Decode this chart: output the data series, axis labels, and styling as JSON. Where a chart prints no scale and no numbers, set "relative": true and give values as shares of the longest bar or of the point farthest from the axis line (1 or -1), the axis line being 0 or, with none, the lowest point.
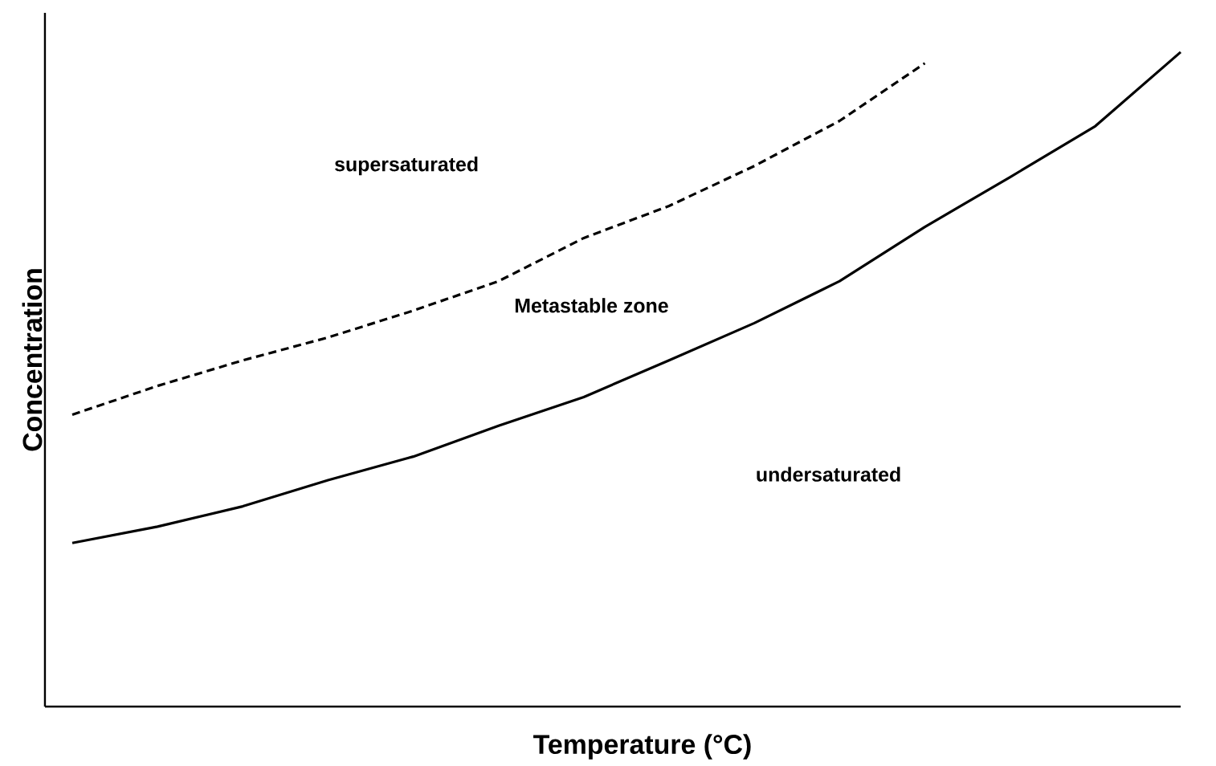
{
  "chart_data": {
    "type": "line",
    "relative": true,
    "xlabel": "Temperature (°C)",
    "ylabel": "Concentration",
    "categories": [
      null,
      null,
      null,
      null,
      null,
      null,
      null,
      null,
      null,
      null,
      null,
      null,
      null,
      null
    ],
    "series": [
      {
        "color": "#000000",
        "line_style": "solid",
        "values": [
          0.25,
          0.275,
          0.306,
          0.346,
          0.382,
          0.429,
          0.473,
          0.529,
          0.586,
          0.65,
          0.733,
          0.809,
          0.887,
          1
        ]
      },
      {
        "color": "#000000",
        "line_style": "dashed",
        "values": [
          0.446,
          0.49,
          0.529,
          0.564,
          0.605,
          0.65,
          0.716,
          0.765,
          0.826,
          0.895,
          0.983,
          null,
          null,
          null
        ]
      }
    ],
    "annotations": [
      "supersaturated",
      "Metastable zone",
      "undersaturated"
    ],
    "marker": "none"
  }
}
